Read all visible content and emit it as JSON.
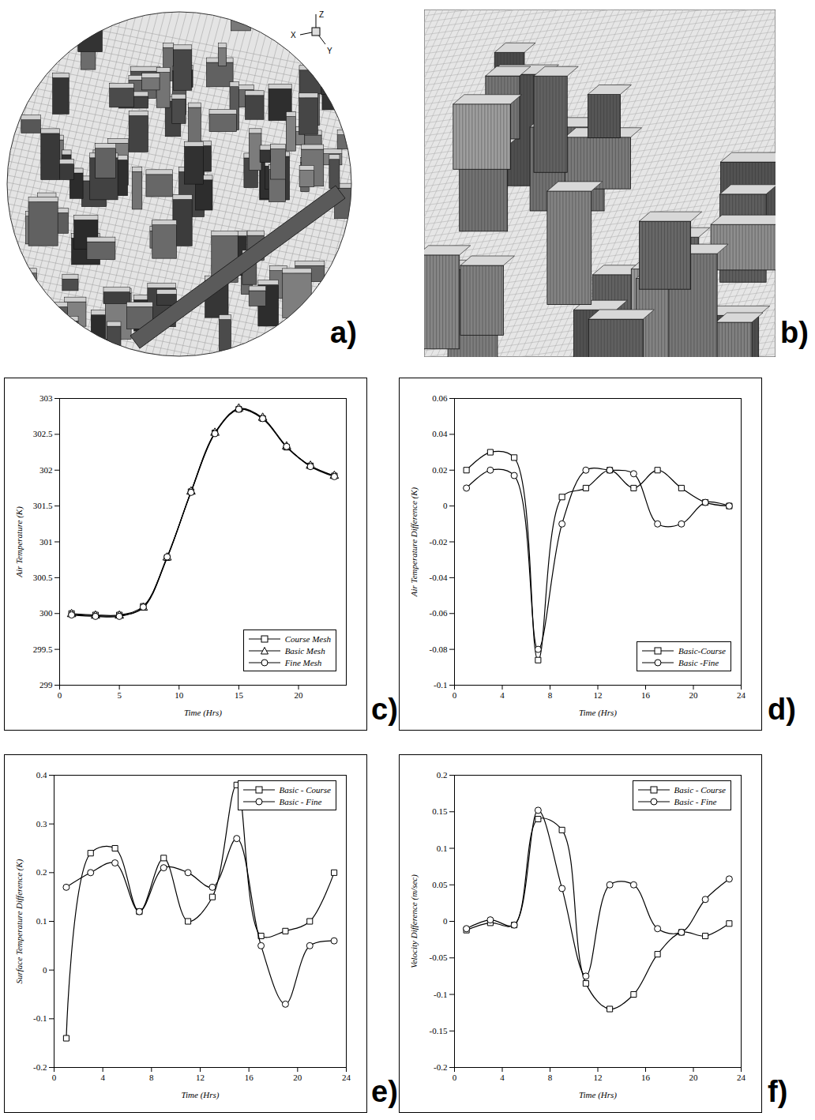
{
  "images": [
    {
      "panel": "a)",
      "axis_labels": [
        "Z",
        "X",
        "Y"
      ]
    },
    {
      "panel": "b)"
    }
  ],
  "chart_data": [
    {
      "panel": "c)",
      "type": "line",
      "x_label": "Time (Hrs)",
      "y_label": "Air Temperature (K)",
      "x": [
        1,
        3,
        5,
        7,
        9,
        11,
        13,
        15,
        17,
        19,
        21,
        23
      ],
      "xlim": [
        0,
        24
      ],
      "xticks": [
        0,
        5,
        10,
        15,
        20
      ],
      "ylim": [
        299,
        303
      ],
      "yticks": [
        299,
        299.5,
        300,
        300.5,
        301,
        301.5,
        302,
        302.5,
        303
      ],
      "legend": "lower right",
      "series": [
        {
          "name": "Course Mesh",
          "color": "#000000",
          "marker": "square",
          "values": [
            300.0,
            299.98,
            299.98,
            300.1,
            300.78,
            301.7,
            302.52,
            302.85,
            302.72,
            302.32,
            302.06,
            301.92
          ]
        },
        {
          "name": "Basic Mesh",
          "color": "#000000",
          "marker": "triangle",
          "values": [
            299.99,
            299.97,
            299.97,
            300.08,
            300.78,
            301.7,
            302.52,
            302.86,
            302.73,
            302.33,
            302.06,
            301.92
          ]
        },
        {
          "name": "Fine Mesh",
          "color": "#000000",
          "marker": "circle",
          "values": [
            299.98,
            299.96,
            299.96,
            300.09,
            300.79,
            301.69,
            302.51,
            302.85,
            302.72,
            302.33,
            302.05,
            301.91
          ]
        }
      ]
    },
    {
      "panel": "d)",
      "type": "line",
      "x_label": "Time (Hrs)",
      "y_label": "Air Temperature Difference (K)",
      "x": [
        1,
        3,
        5,
        7,
        9,
        11,
        13,
        15,
        17,
        19,
        21,
        23
      ],
      "xlim": [
        0,
        24
      ],
      "xticks": [
        0,
        4,
        8,
        12,
        16,
        20,
        24
      ],
      "ylim": [
        -0.1,
        0.06
      ],
      "yticks": [
        -0.1,
        -0.08,
        -0.06,
        -0.04,
        -0.02,
        0,
        0.02,
        0.04,
        0.06
      ],
      "legend": "lower right",
      "series": [
        {
          "name": "Basic-Course",
          "color": "#000000",
          "marker": "square",
          "values": [
            0.02,
            0.03,
            0.027,
            -0.086,
            0.005,
            0.01,
            0.02,
            0.01,
            0.02,
            0.01,
            0.002,
            0
          ]
        },
        {
          "name": "Basic -Fine",
          "color": "#000000",
          "marker": "circle",
          "values": [
            0.01,
            0.02,
            0.017,
            -0.08,
            -0.01,
            0.02,
            0.02,
            0.018,
            -0.01,
            -0.01,
            0.002,
            0
          ]
        }
      ]
    },
    {
      "panel": "e)",
      "type": "line",
      "x_label": "Time (Hrs)",
      "y_label": "Surface Temperature Difference (K)",
      "x": [
        1,
        3,
        5,
        7,
        9,
        11,
        13,
        15,
        17,
        19,
        21,
        23
      ],
      "xlim": [
        0,
        24
      ],
      "xticks": [
        0,
        4,
        8,
        12,
        16,
        20,
        24
      ],
      "ylim": [
        -0.2,
        0.4
      ],
      "yticks": [
        -0.2,
        -0.1,
        0,
        0.1,
        0.2,
        0.3,
        0.4
      ],
      "legend": "upper right",
      "series": [
        {
          "name": "Basic - Course",
          "color": "#000000",
          "marker": "square",
          "values": [
            -0.14,
            0.24,
            0.25,
            0.12,
            0.23,
            0.1,
            0.15,
            0.38,
            0.07,
            0.08,
            0.1,
            0.2
          ]
        },
        {
          "name": "Basic - Fine",
          "color": "#000000",
          "marker": "circle",
          "values": [
            0.17,
            0.2,
            0.22,
            0.12,
            0.21,
            0.2,
            0.17,
            0.27,
            0.05,
            -0.07,
            0.05,
            0.06
          ]
        }
      ]
    },
    {
      "panel": "f)",
      "type": "line",
      "x_label": "Time (Hrs)",
      "y_label": "Velocity Difference (m/sec)",
      "x": [
        1,
        3,
        5,
        7,
        9,
        11,
        13,
        15,
        17,
        19,
        21,
        23
      ],
      "xlim": [
        0,
        24
      ],
      "xticks": [
        0,
        4,
        8,
        12,
        16,
        20,
        24
      ],
      "ylim": [
        -0.2,
        0.2
      ],
      "yticks": [
        -0.2,
        -0.15,
        -0.1,
        -0.05,
        0,
        0.05,
        0.1,
        0.15,
        0.2
      ],
      "legend": "upper right",
      "series": [
        {
          "name": "Basic - Course",
          "color": "#000000",
          "marker": "square",
          "values": [
            -0.012,
            -0.002,
            -0.005,
            0.14,
            0.125,
            -0.085,
            -0.12,
            -0.1,
            -0.045,
            -0.015,
            -0.02,
            -0.003
          ]
        },
        {
          "name": "Basic - Fine",
          "color": "#000000",
          "marker": "circle",
          "values": [
            -0.01,
            0.002,
            -0.005,
            0.152,
            0.045,
            -0.075,
            0.05,
            0.05,
            -0.01,
            -0.015,
            0.03,
            0.058
          ]
        }
      ]
    }
  ]
}
